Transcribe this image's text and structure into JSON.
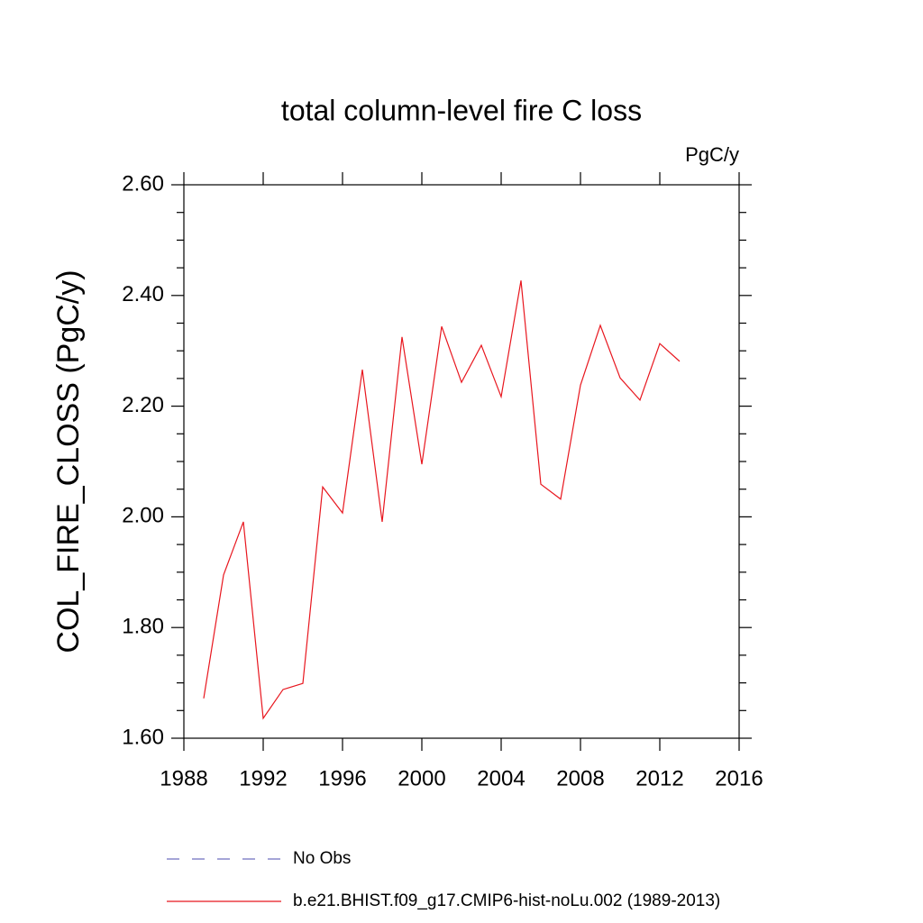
{
  "chart_data": {
    "type": "line",
    "title": "total column-level fire C loss",
    "units": "PgC/y",
    "y_label": "COL_FIRE_CLOSS  (PgC/y)",
    "x": [
      1989,
      1990,
      1991,
      1992,
      1993,
      1994,
      1995,
      1996,
      1997,
      1998,
      1999,
      2000,
      2001,
      2002,
      2003,
      2004,
      2005,
      2006,
      2007,
      2008,
      2009,
      2010,
      2011,
      2012,
      2013
    ],
    "series": [
      {
        "name": "No Obs",
        "color": "#6f6fbf",
        "dashed": true,
        "values": [
          null,
          null,
          null,
          null,
          null,
          null,
          null,
          null,
          null,
          null,
          null,
          null,
          null,
          null,
          null,
          null,
          null,
          null,
          null,
          null,
          null,
          null,
          null,
          null,
          null
        ]
      },
      {
        "name": "b.e21.BHIST.f09_g17.CMIP6-hist-noLu.002 (1989-2013)",
        "color": "#e8161e",
        "dashed": false,
        "values": [
          1.672,
          1.895,
          1.991,
          1.636,
          1.688,
          1.699,
          2.054,
          2.007,
          2.266,
          1.991,
          2.325,
          2.095,
          2.344,
          2.243,
          2.31,
          2.217,
          2.427,
          2.059,
          2.032,
          2.238,
          2.346,
          2.251,
          2.211,
          2.313,
          2.281
        ]
      }
    ],
    "xlim": [
      1988,
      2016
    ],
    "xticks": [
      1988,
      1992,
      1996,
      2000,
      2004,
      2008,
      2012,
      2016
    ],
    "ylim": [
      1.6,
      2.6
    ],
    "yticks": [
      {
        "value": 1.6,
        "label": "1.60"
      },
      {
        "value": 1.8,
        "label": "1.80"
      },
      {
        "value": 2.0,
        "label": "2.00"
      },
      {
        "value": 2.2,
        "label": "2.20"
      },
      {
        "value": 2.4,
        "label": "2.40"
      },
      {
        "value": 2.6,
        "label": "2.60"
      }
    ],
    "yminor_ticks": [
      1.65,
      1.7,
      1.75,
      1.85,
      1.9,
      1.95,
      2.05,
      2.1,
      2.15,
      2.25,
      2.3,
      2.35,
      2.45,
      2.5,
      2.55
    ],
    "grid": false
  }
}
